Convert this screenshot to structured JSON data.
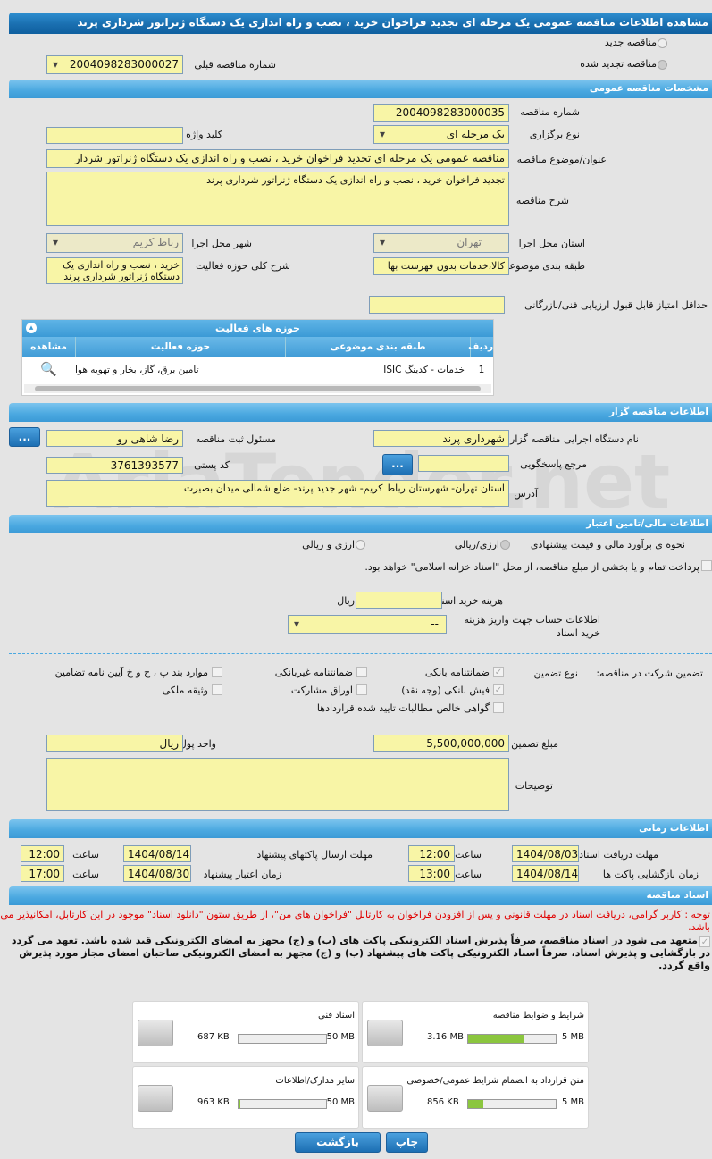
{
  "title": "مشاهده اطلاعات مناقصه عمومی یک مرحله ای تجدید فراخوان خرید ، نصب و راه اندازی یک دستگاه ژنراتور شرداری پرند",
  "watermark": "AriaTender.net",
  "top": {
    "new_tender": "مناقصه جدید",
    "renewed_tender": "مناقصه تجدید شده",
    "prev_label": "شماره مناقصه قبلی",
    "prev_value": "2004098283000027"
  },
  "general": {
    "header": "مشخصات مناقصه عمومی",
    "number_label": "شماره مناقصه",
    "number": "2004098283000035",
    "type_label": "نوع برگزاری",
    "type": "یک مرحله ای",
    "keyword_label": "کلید واژه",
    "keyword": "",
    "subject_label": "عنوان/موضوع مناقصه",
    "subject": "مناقصه عمومی یک مرحله ای تجدید فراخوان خرید ، نصب و راه اندازی یک دستگاه ژنراتور شردار",
    "desc_label": "شرح مناقصه",
    "desc": "تجدید فراخوان خرید ، نصب و راه اندازی یک دستگاه ژنراتور شرداری پرند",
    "province_label": "استان محل اجرا",
    "province": "تهران",
    "city_label": "شهر محل اجرا",
    "city": "رباط کریم",
    "category_label": "طبقه بندی موضوعی",
    "category": "کالا،خدمات بدون فهرست بها",
    "scope_label": "شرح کلی حوزه فعالیت",
    "scope": "خرید ، نصب و راه اندازی یک دستگاه ژنراتور شرداری پرند",
    "min_score_label": "حداقل امتیاز قابل قبول ارزیابی فنی/بازرگانی",
    "min_score": ""
  },
  "activity": {
    "header": "حوزه های فعالیت",
    "columns": [
      "ردیف",
      "طبقه بندی موضوعی",
      "حوزه فعالیت",
      "مشاهده"
    ],
    "rows": [
      {
        "idx": "1",
        "category": "خدمات - کدینگ ISIC",
        "field": "تامین برق، گاز، بخار و تهویه هوا"
      }
    ]
  },
  "organizer": {
    "header": "اطلاعات مناقصه گزار",
    "org_label": "نام دستگاه اجرایی مناقصه گزار",
    "org": "شهرداری پرند",
    "resp_label": "مسئول ثبت مناقصه",
    "resp": "رضا شاهی رو",
    "ref_label": "مرجع پاسخگویی",
    "ref": "",
    "postal_label": "کد پستی",
    "postal": "3761393577",
    "addr_label": "آدرس",
    "addr": "استان تهران- شهرستان رباط کریم- شهر جدید پرند- ضلع شمالی میدان بصیرت",
    "dots": "..."
  },
  "finance": {
    "header": "اطلاعات مالی/تامین اعتبار",
    "method_label": "نحوه ی برآورد مالی و قیمت پیشنهادی",
    "opt1": "ارزی/ریالی",
    "opt2": "ارزی و ریالی",
    "treasury": "پرداخت تمام و یا بخشی از مبلغ مناقصه، از محل \"اسناد خزانه اسلامی\" خواهد بود.",
    "doc_fee_label": "هزینه خرید اسناد",
    "doc_fee": "",
    "rial": "ریال",
    "account_label": "اطلاعات حساب جهت واریز هزینه خرید اسناد",
    "account": "--"
  },
  "guarantee": {
    "label": "تضمین شرکت در مناقصه:",
    "type_label": "نوع تضمین",
    "items": [
      {
        "label": "ضمانتنامه بانکی",
        "checked": true
      },
      {
        "label": "ضمانتنامه غیربانکی",
        "checked": false
      },
      {
        "label": "موارد بند پ ، ح و خ آیین نامه تضامین",
        "checked": false
      },
      {
        "label": "فیش بانکی (وجه نقد)",
        "checked": true
      },
      {
        "label": "اوراق مشارکت",
        "checked": false
      },
      {
        "label": "وثیقه ملکی",
        "checked": false
      },
      {
        "label": "گواهی خالص مطالبات تایید شده قراردادها",
        "checked": false
      }
    ],
    "amount_label": "مبلغ تضمین",
    "amount": "5,500,000,000",
    "currency_label": "واحد پول",
    "currency": "ریال",
    "notes_label": "توضیحات",
    "notes": ""
  },
  "timing": {
    "header": "اطلاعات زمانی",
    "time_label": "ساعت",
    "doc_receive_label": "مهلت دریافت اسناد",
    "doc_receive_date": "1404/08/03",
    "doc_receive_time": "12:00",
    "submit_label": "مهلت ارسال پاکتهای پیشنهاد",
    "submit_date": "1404/08/14",
    "submit_time": "12:00",
    "open_label": "زمان بازگشایی پاکت ها",
    "open_date": "1404/08/14",
    "open_time": "13:00",
    "validity_label": "زمان اعتبار پیشنهاد",
    "validity_date": "1404/08/30",
    "validity_time": "17:00"
  },
  "docs": {
    "header": "اسناد مناقصه",
    "notice": "توجه : کاربر گرامی، دریافت اسناد در مهلت قانونی و پس از افزودن فراخوان به کارتابل \"فراخوان های من\"، از طریق ستون \"دانلود اسناد\" موجود در این کارتابل، امکانپذیر می باشد.",
    "commit": "متعهد می شود در اسناد مناقصه، صرفاً پذیرش اسناد الکترونیکی پاکت های (ب) و (ج) مجهز به امضای الکترونیکی قید شده باشد. تعهد می گردد در بازگشایی و پذیرش اسناد، صرفاً اسناد الکترونیکی پاکت های پیشنهاد (ب) و (ج) مجهز به امضای الکترونیکی صاحبان امضای مجاز مورد پذیرش واقع گردد.",
    "files": [
      {
        "name": "شرایط و ضوابط مناقصه",
        "size": "3.16 MB",
        "max": "5 MB",
        "fill_pct": 63
      },
      {
        "name": "اسناد فنی",
        "size": "687 KB",
        "max": "50 MB",
        "fill_pct": 1.4
      },
      {
        "name": "متن قرارداد به انضمام شرایط عمومی/خصوصی",
        "size": "856 KB",
        "max": "5 MB",
        "fill_pct": 17
      },
      {
        "name": "سایر مدارک/اطلاعات",
        "size": "963 KB",
        "max": "50 MB",
        "fill_pct": 2
      }
    ]
  },
  "buttons": {
    "print": "چاپ",
    "back": "بازگشت"
  },
  "colors": {
    "header": "#1a6fb0",
    "section": "#4aa8e0",
    "input": "#f8f5a6",
    "notice": "#e00000"
  }
}
